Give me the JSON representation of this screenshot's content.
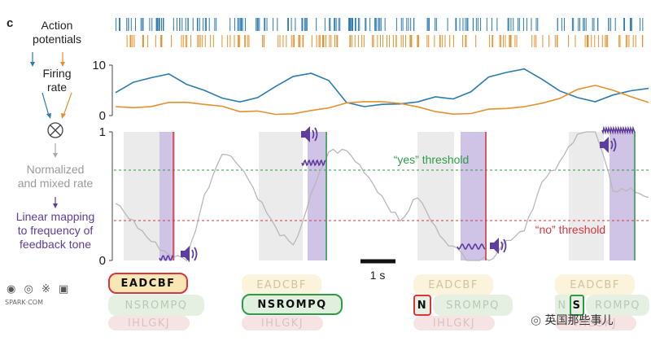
{
  "panel": "c",
  "flow_labels": {
    "action_potentials": [
      "Action",
      "potentials"
    ],
    "firing_rate": [
      "Firing",
      "rate"
    ],
    "normalized": [
      "Normalized",
      "and mixed rate"
    ],
    "linear": [
      "Linear mapping",
      "to frequency of",
      "feedback tone"
    ]
  },
  "colors": {
    "blue": "#2b7bb0",
    "orange": "#e3912e",
    "gray_trace": "#b8b8b8",
    "purple": "#5e3d9e",
    "purple_band": "#cfc3e6",
    "gray_band": "#ebebeb",
    "green": "#2e9c47",
    "red": "#d8363d"
  },
  "thresholds": {
    "yes_label": "“yes” threshold",
    "no_label": "“no” threshold"
  },
  "scale_bar": "1 s",
  "chart_data": [
    {
      "type": "line",
      "title": "Firing rate",
      "ylim": [
        0,
        10
      ],
      "yticks": [
        "10",
        "0"
      ],
      "x": [
        0,
        0.5,
        1,
        1.5,
        2,
        2.5,
        3,
        3.5,
        4,
        4.5,
        5,
        5.5,
        6,
        6.5,
        7,
        7.5,
        8,
        8.5,
        9,
        9.5,
        10,
        10.5,
        11,
        11.5,
        12,
        12.5,
        13,
        13.5,
        14,
        14.5,
        15
      ],
      "series": [
        {
          "color": "#2b7bb0",
          "values": [
            4.5,
            6.5,
            7.5,
            8.5,
            6.5,
            5,
            3.5,
            3,
            3.5,
            6,
            8,
            8.5,
            7,
            2.5,
            1.5,
            2,
            2.5,
            3,
            3.5,
            3,
            4.5,
            7.5,
            8.5,
            9,
            7.5,
            5,
            3.5,
            3,
            4,
            5,
            5.5
          ]
        },
        {
          "color": "#e3912e",
          "values": [
            1.5,
            1.5,
            2,
            2.5,
            2.5,
            2.5,
            2,
            1,
            1,
            0.5,
            0.5,
            1,
            1.5,
            2.5,
            2.5,
            3,
            2.5,
            2,
            1,
            0.5,
            0.5,
            1.5,
            1.5,
            2,
            2.5,
            3.5,
            5,
            6,
            5,
            3.5,
            2.5
          ]
        }
      ]
    },
    {
      "type": "line",
      "title": "Normalized and mixed rate",
      "ylim": [
        0,
        1
      ],
      "yticks": [
        "1",
        "0"
      ],
      "x": [
        0,
        0.5,
        1,
        1.5,
        2,
        2.5,
        3,
        3.5,
        4,
        4.5,
        5,
        5.5,
        6,
        6.5,
        7,
        7.5,
        8,
        8.5,
        9,
        9.5,
        10,
        10.5,
        11,
        11.5,
        12,
        12.5,
        13,
        13.5,
        14,
        14.5,
        15
      ],
      "series": [
        {
          "color": "#b8b8b8",
          "values": [
            0.45,
            0.3,
            0.15,
            0.05,
            0.0,
            0.5,
            0.85,
            0.75,
            0.5,
            0.25,
            0.1,
            0.5,
            0.85,
            0.85,
            0.7,
            0.5,
            0.3,
            0.5,
            0.25,
            0.1,
            0.0,
            0.0,
            0.15,
            0.25,
            0.6,
            0.75,
            1.0,
            1.0,
            0.55,
            0.55,
            0.5
          ]
        }
      ],
      "thresholds": [
        {
          "name": "“yes” threshold",
          "value": 0.71
        },
        {
          "name": "“no” threshold",
          "value": 0.31
        }
      ]
    }
  ],
  "groups": [
    {
      "rows": [
        "EADCBF",
        "NSROMPQ",
        "IHLGKJ"
      ],
      "selected_row": 0,
      "selected_letter": null
    },
    {
      "rows": [
        "EADCBF",
        "NSROMPQ",
        "IHLGKJ"
      ],
      "selected_row": 1,
      "selected_letter": null
    },
    {
      "rows": [
        "EADCBF",
        "N",
        "SROMPQ",
        "IHLGKJ"
      ],
      "selected_row": 1,
      "selected_letter": "N"
    },
    {
      "rows": [
        "EADCBF",
        "N",
        "S",
        "ROMPQ",
        "IHLGKJ"
      ],
      "selected_row": 1,
      "selected_letter": "S"
    }
  ],
  "watermark_left": [
    "SPARK·COM"
  ],
  "watermark_right": "英国那些事儿"
}
